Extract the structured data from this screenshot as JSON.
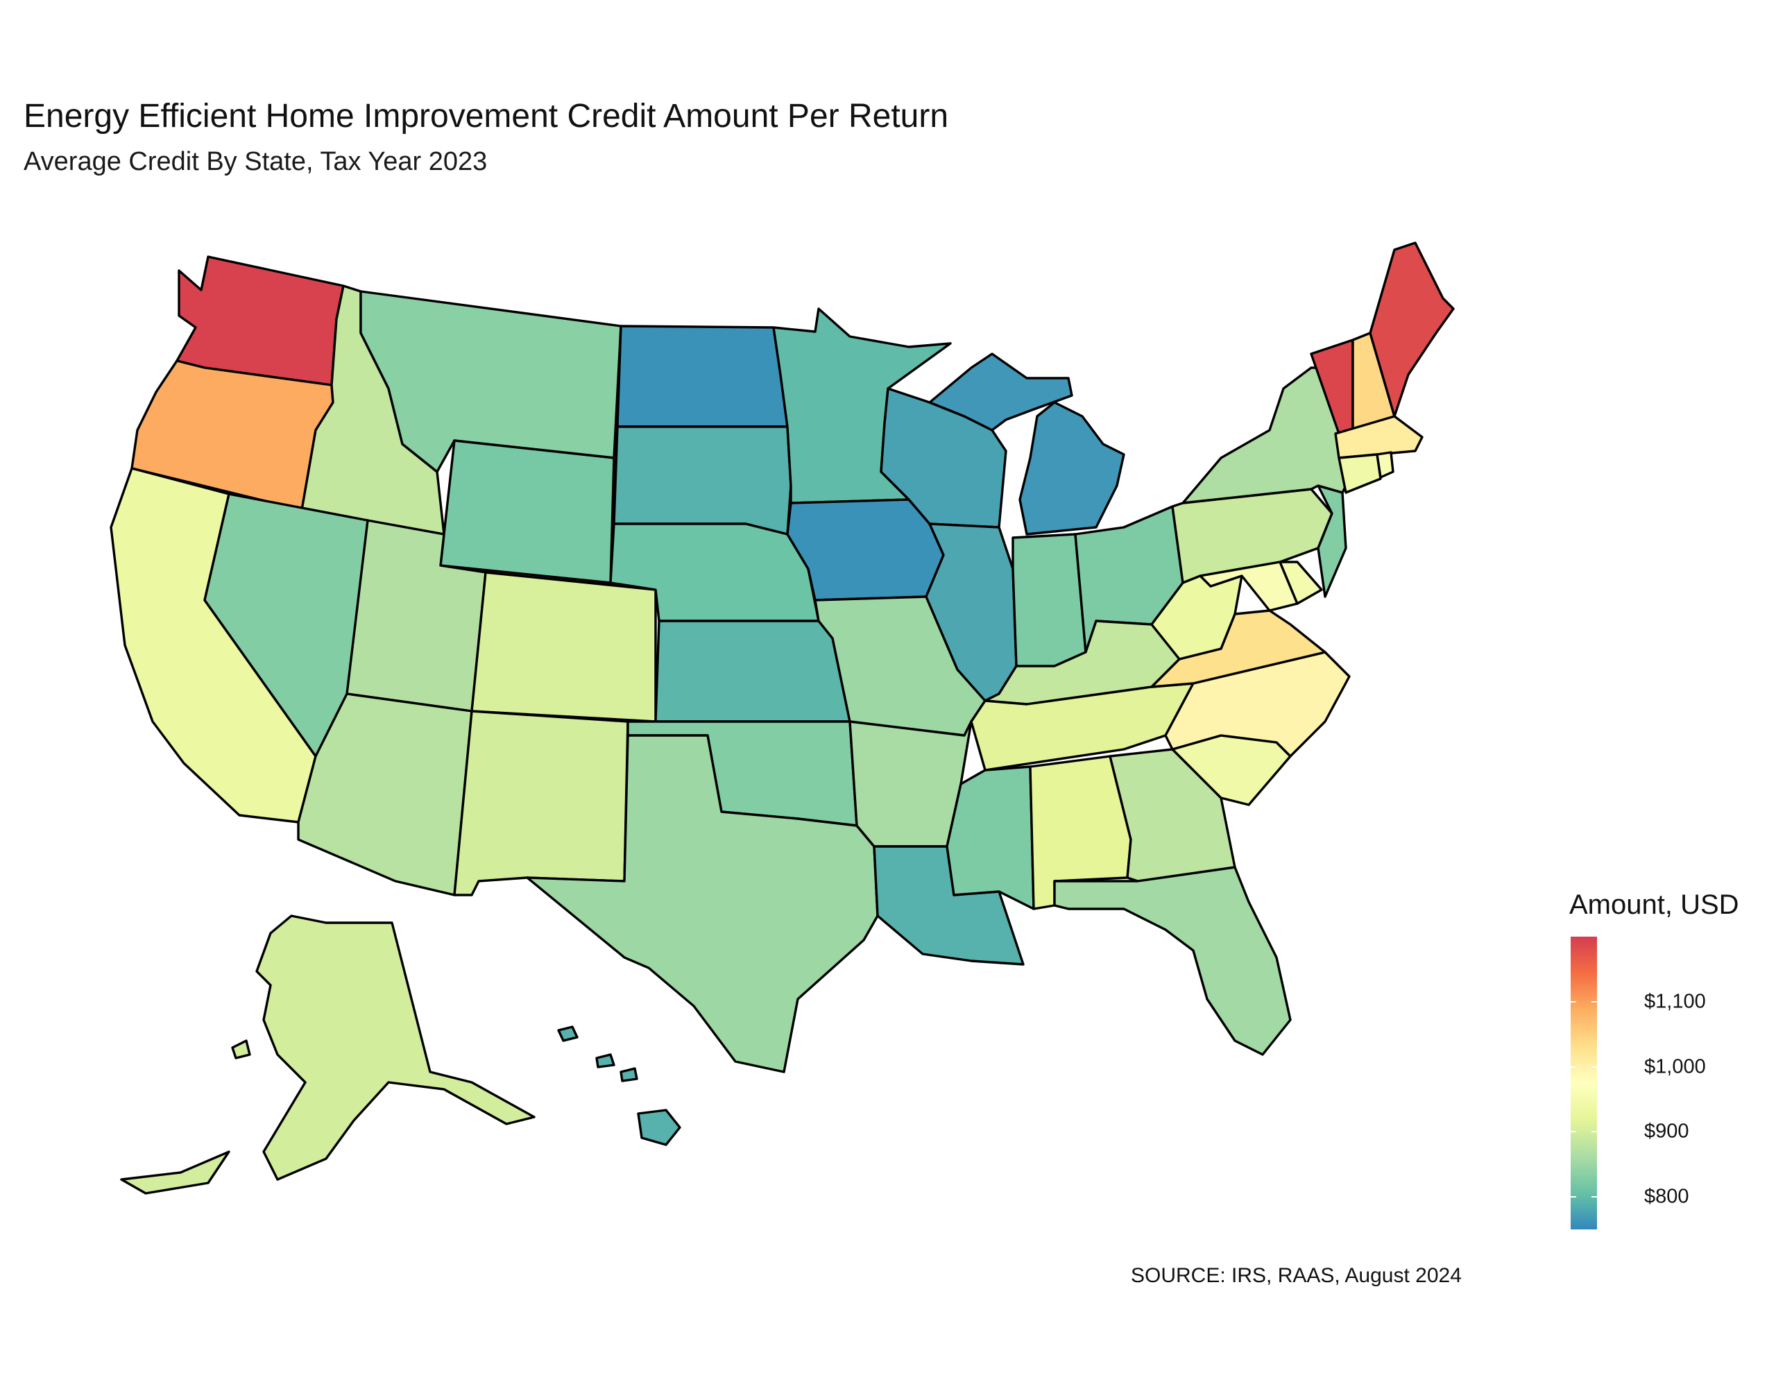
{
  "title": "Energy Efficient Home Improvement Credit Amount Per Return",
  "subtitle": "Average Credit By State, Tax Year 2023",
  "source": "SOURCE: IRS, RAAS, August 2024",
  "legend": {
    "title": "Amount, USD",
    "ticks": [
      "$1,100",
      "$1,000",
      "$900",
      "$800"
    ],
    "tick_values": [
      1100,
      1000,
      900,
      800
    ],
    "range": [
      750,
      1200
    ],
    "palette": [
      "#3288bd",
      "#66c2a5",
      "#abdda4",
      "#e6f598",
      "#ffffbf",
      "#fee08b",
      "#fdae61",
      "#f46d43",
      "#d53e4f"
    ]
  },
  "chart_data": {
    "type": "choropleth",
    "title": "Energy Efficient Home Improvement Credit Amount Per Return",
    "subtitle": "Average Credit By State, Tax Year 2023",
    "legend_title": "Amount, USD",
    "legend_position": "right",
    "scale": {
      "min": 750,
      "max": 1200,
      "palette": "Spectral (reversed)"
    },
    "states": [
      {
        "state": "WA",
        "value": 1195
      },
      {
        "state": "OR",
        "value": 1090
      },
      {
        "state": "CA",
        "value": 935
      },
      {
        "state": "ID",
        "value": 885
      },
      {
        "state": "NV",
        "value": 830
      },
      {
        "state": "MT",
        "value": 835
      },
      {
        "state": "WY",
        "value": 820
      },
      {
        "state": "UT",
        "value": 870
      },
      {
        "state": "CO",
        "value": 905
      },
      {
        "state": "AZ",
        "value": 875
      },
      {
        "state": "NM",
        "value": 900
      },
      {
        "state": "ND",
        "value": 760
      },
      {
        "state": "SD",
        "value": 790
      },
      {
        "state": "NE",
        "value": 810
      },
      {
        "state": "KS",
        "value": 795
      },
      {
        "state": "OK",
        "value": 830
      },
      {
        "state": "TX",
        "value": 850
      },
      {
        "state": "MN",
        "value": 800
      },
      {
        "state": "IA",
        "value": 760
      },
      {
        "state": "MO",
        "value": 850
      },
      {
        "state": "AR",
        "value": 860
      },
      {
        "state": "LA",
        "value": 790
      },
      {
        "state": "WI",
        "value": 775
      },
      {
        "state": "IL",
        "value": 780
      },
      {
        "state": "MI",
        "value": 765
      },
      {
        "state": "IN",
        "value": 825
      },
      {
        "state": "OH",
        "value": 825
      },
      {
        "state": "KY",
        "value": 885
      },
      {
        "state": "TN",
        "value": 915
      },
      {
        "state": "MS",
        "value": 825
      },
      {
        "state": "AL",
        "value": 920
      },
      {
        "state": "GA",
        "value": 880
      },
      {
        "state": "FL",
        "value": 855
      },
      {
        "state": "SC",
        "value": 940
      },
      {
        "state": "NC",
        "value": 995
      },
      {
        "state": "VA",
        "value": 1030
      },
      {
        "state": "WV",
        "value": 935
      },
      {
        "state": "MD",
        "value": 960
      },
      {
        "state": "DE",
        "value": 950
      },
      {
        "state": "NJ",
        "value": 830
      },
      {
        "state": "PA",
        "value": 890
      },
      {
        "state": "NY",
        "value": 865
      },
      {
        "state": "CT",
        "value": 940
      },
      {
        "state": "RI",
        "value": 960
      },
      {
        "state": "MA",
        "value": 1010
      },
      {
        "state": "VT",
        "value": 1190
      },
      {
        "state": "NH",
        "value": 1040
      },
      {
        "state": "ME",
        "value": 1185
      },
      {
        "state": "AK",
        "value": 900
      },
      {
        "state": "HI",
        "value": 790
      }
    ]
  }
}
